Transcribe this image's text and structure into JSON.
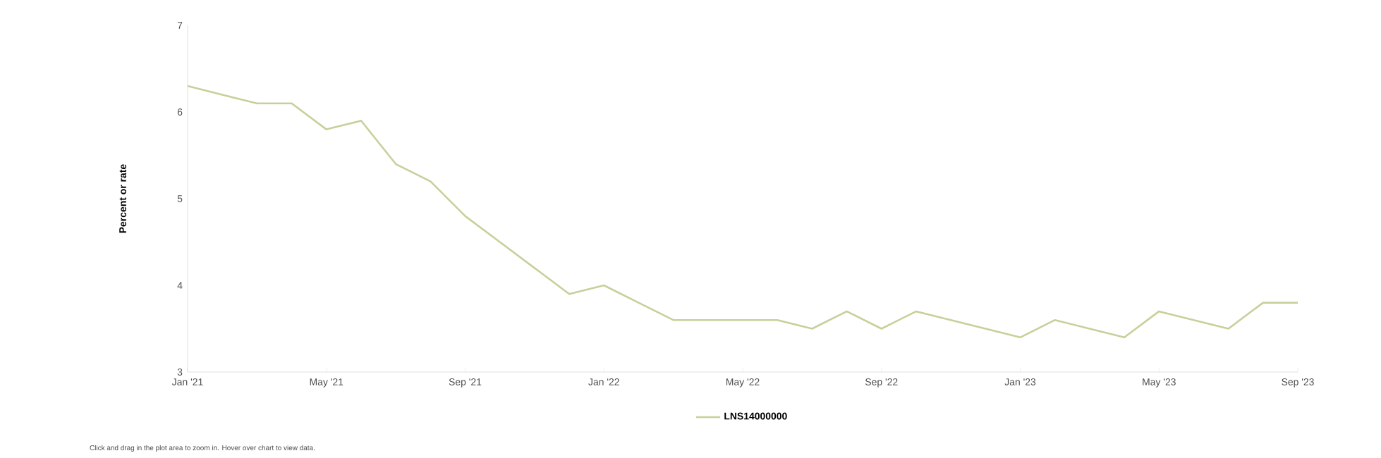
{
  "chart_data": {
    "type": "line",
    "ylabel": "Percent or rate",
    "x": [
      "2021-01",
      "2021-02",
      "2021-03",
      "2021-04",
      "2021-05",
      "2021-06",
      "2021-07",
      "2021-08",
      "2021-09",
      "2021-10",
      "2021-11",
      "2021-12",
      "2022-01",
      "2022-02",
      "2022-03",
      "2022-04",
      "2022-05",
      "2022-06",
      "2022-07",
      "2022-08",
      "2022-09",
      "2022-10",
      "2022-11",
      "2022-12",
      "2023-01",
      "2023-02",
      "2023-03",
      "2023-04",
      "2023-05",
      "2023-06",
      "2023-07",
      "2023-08",
      "2023-09"
    ],
    "series": [
      {
        "name": "LNS14000000",
        "color": "#c5d19a",
        "values": [
          6.3,
          6.2,
          6.1,
          6.1,
          5.8,
          5.9,
          5.4,
          5.2,
          4.8,
          4.5,
          4.2,
          3.9,
          4.0,
          3.8,
          3.6,
          3.6,
          3.6,
          3.6,
          3.5,
          3.7,
          3.5,
          3.7,
          3.6,
          3.5,
          3.4,
          3.6,
          3.5,
          3.4,
          3.7,
          3.6,
          3.5,
          3.8,
          3.8
        ]
      }
    ],
    "xlim": [
      "2021-01",
      "2023-09"
    ],
    "xticks": [
      {
        "value": "2021-01",
        "label": "Jan '21"
      },
      {
        "value": "2021-05",
        "label": "May '21"
      },
      {
        "value": "2021-09",
        "label": "Sep '21"
      },
      {
        "value": "2022-01",
        "label": "Jan '22"
      },
      {
        "value": "2022-05",
        "label": "May '22"
      },
      {
        "value": "2022-09",
        "label": "Sep '22"
      },
      {
        "value": "2023-01",
        "label": "Jan '23"
      },
      {
        "value": "2023-05",
        "label": "May '23"
      },
      {
        "value": "2023-09",
        "label": "Sep '23"
      }
    ],
    "ylim": [
      3,
      7
    ],
    "yticks": [
      3,
      4,
      5,
      6,
      7
    ],
    "legend": "bottom",
    "annotations": [
      "Click and drag in the plot area to zoom in. Hover over chart to view data."
    ]
  }
}
